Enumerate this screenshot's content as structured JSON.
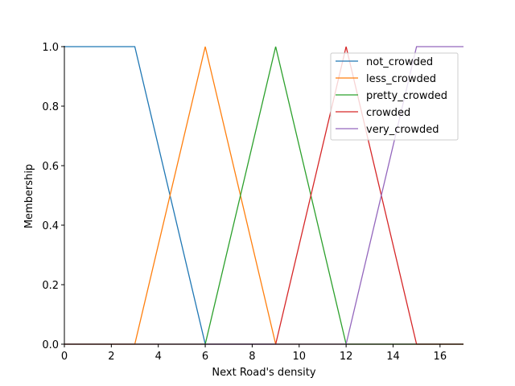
{
  "chart_data": {
    "type": "line",
    "title": "",
    "xlabel": "Next Road's density",
    "ylabel": "Membership",
    "xlim": [
      0,
      17
    ],
    "ylim": [
      0,
      1
    ],
    "xticks": [
      0,
      2,
      4,
      6,
      8,
      10,
      12,
      14,
      16
    ],
    "yticks": [
      0.0,
      0.2,
      0.4,
      0.6,
      0.8,
      1.0
    ],
    "grid": false,
    "legend": "top-right",
    "series": [
      {
        "name": "not_crowded",
        "color": "#1f77b4",
        "x": [
          0,
          3,
          6,
          17
        ],
        "y": [
          1,
          1,
          0,
          0
        ]
      },
      {
        "name": "less_crowded",
        "color": "#ff7f0e",
        "x": [
          0,
          3,
          6,
          9,
          17
        ],
        "y": [
          0,
          0,
          1,
          0,
          0
        ]
      },
      {
        "name": "pretty_crowded",
        "color": "#2ca02c",
        "x": [
          0,
          6,
          9,
          12,
          17
        ],
        "y": [
          0,
          0,
          1,
          0,
          0
        ]
      },
      {
        "name": "crowded",
        "color": "#d62728",
        "x": [
          0,
          9,
          12,
          15,
          17
        ],
        "y": [
          0,
          0,
          1,
          0,
          0
        ]
      },
      {
        "name": "very_crowded",
        "color": "#9467bd",
        "x": [
          0,
          12,
          15,
          17
        ],
        "y": [
          0,
          0,
          1,
          1
        ]
      }
    ]
  }
}
